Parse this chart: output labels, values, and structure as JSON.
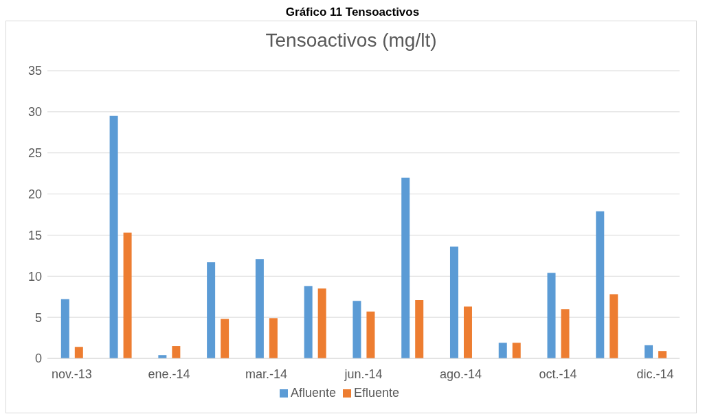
{
  "chart_data": {
    "type": "bar",
    "title": "Gráfico 11 Tensoactivos",
    "subtitle": "Tensoactivos (mg/lt)",
    "categories": [
      "nov.-13",
      null,
      "ene.-14",
      null,
      "mar.-14",
      null,
      "jun.-14",
      null,
      "ago.-14",
      null,
      "oct.-14",
      null,
      "dic.-14"
    ],
    "series": [
      {
        "name": "Afluente",
        "color": "#5b9bd5",
        "values": [
          7.2,
          29.5,
          0.4,
          11.7,
          12.1,
          8.8,
          7.0,
          22.0,
          13.6,
          1.9,
          10.4,
          17.9,
          1.6
        ]
      },
      {
        "name": "Efluente",
        "color": "#ed7d31",
        "values": [
          1.4,
          15.3,
          1.5,
          4.8,
          4.9,
          8.5,
          5.7,
          7.1,
          6.3,
          1.9,
          6.0,
          7.8,
          0.9
        ]
      }
    ],
    "ylim": [
      0,
      35
    ],
    "yticks": [
      0,
      5,
      10,
      15,
      20,
      25,
      30,
      35
    ],
    "grid": "y",
    "legend": "bottom"
  }
}
